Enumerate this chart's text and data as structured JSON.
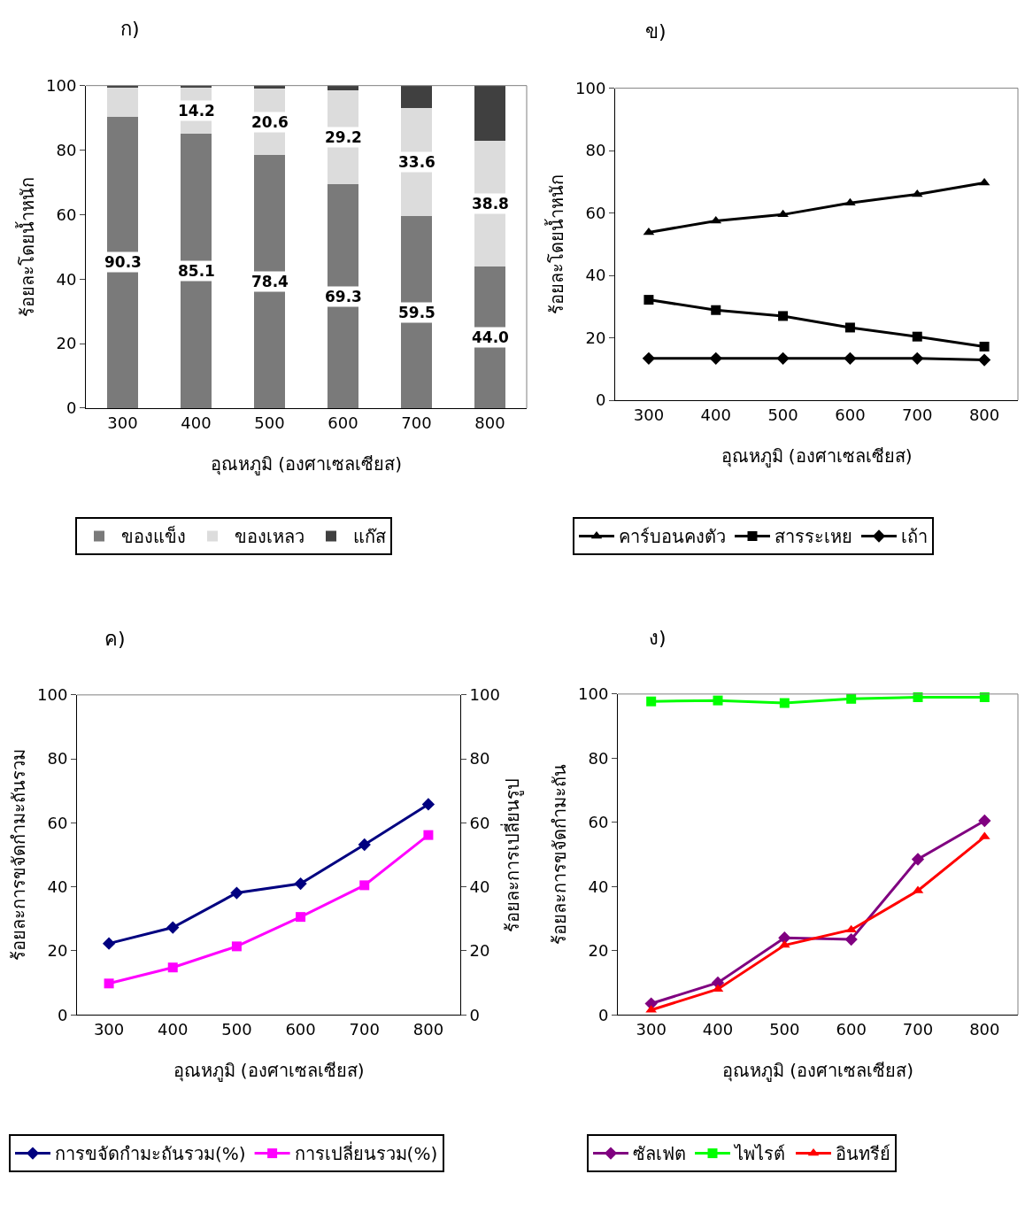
{
  "chart_data": [
    {
      "type": "bar",
      "title": "ก)",
      "xlabel": "อุณหภูมิ (องศาเซลเซียส)",
      "ylabel": "ร้อยละโดยน้ำหนัก",
      "categories": [
        "300",
        "400",
        "500",
        "600",
        "700",
        "800"
      ],
      "stacked": true,
      "ylim": [
        0,
        100
      ],
      "yticks": [
        0,
        20,
        40,
        60,
        80,
        100
      ],
      "legend": "bottom",
      "series": [
        {
          "name": "ของแข็ง",
          "color": "#7a7a7a",
          "values": [
            90.3,
            85.1,
            78.4,
            69.3,
            59.5,
            44.0
          ],
          "value_labels": [
            "90.3",
            "85.1",
            "78.4",
            "69.3",
            "59.5",
            "44.0"
          ]
        },
        {
          "name": "ของเหลว",
          "color": "#dcdcdc",
          "values": [
            9.0,
            14.2,
            20.6,
            29.2,
            33.6,
            38.8
          ],
          "value_labels": [
            null,
            "14.2",
            "20.6",
            "29.2",
            "33.6",
            "38.8"
          ]
        },
        {
          "name": "แก๊ส",
          "color": "#404040",
          "values": [
            0.7,
            0.7,
            1.0,
            1.5,
            6.9,
            17.2
          ]
        }
      ]
    },
    {
      "type": "line",
      "title": "ข)",
      "xlabel": "อุณหภูมิ (องศาเซลเซียส)",
      "ylabel": "ร้อยละโดยน้ำหนัก",
      "categories": [
        "300",
        "400",
        "500",
        "600",
        "700",
        "800"
      ],
      "ylim": [
        0,
        100
      ],
      "yticks": [
        0,
        20,
        40,
        60,
        80,
        100
      ],
      "legend": "bottom",
      "line_style": "solid",
      "series": [
        {
          "name": "คาร์บอนคงตัว",
          "color": "#000000",
          "marker": "triangle",
          "values": [
            53.8,
            57.5,
            59.5,
            63.2,
            66.0,
            69.7
          ]
        },
        {
          "name": "สารระเหย",
          "color": "#000000",
          "marker": "square",
          "values": [
            32.2,
            28.9,
            27.0,
            23.3,
            20.4,
            17.2
          ]
        },
        {
          "name": "เถ้า",
          "color": "#000000",
          "marker": "diamond",
          "values": [
            13.4,
            13.4,
            13.4,
            13.4,
            13.4,
            12.9
          ]
        }
      ]
    },
    {
      "type": "line",
      "title": "ค)",
      "xlabel": "อุณหภูมิ (องศาเซลเซียส)",
      "ylabel": "ร้อยละการขจัดกำมะถันรวม",
      "y2label": "ร้อยละการเปลี่ยนรูป",
      "categories": [
        "300",
        "400",
        "500",
        "600",
        "700",
        "800"
      ],
      "ylim": [
        0,
        100
      ],
      "yticks": [
        0,
        20,
        40,
        60,
        80,
        100
      ],
      "y2lim": [
        0,
        100
      ],
      "y2ticks": [
        0,
        20,
        40,
        60,
        80,
        100
      ],
      "legend": "bottom",
      "line_style": "solid",
      "series": [
        {
          "name": "การขจัดกำมะถันรวม(%)",
          "color": "#000080",
          "marker": "diamond",
          "values": [
            22.3,
            27.3,
            38.1,
            41.0,
            53.2,
            65.8
          ]
        },
        {
          "name": "การเปลี่ยนรวม(%)",
          "color": "#ff00ff",
          "marker": "square",
          "axis": "y2",
          "values": [
            9.8,
            14.8,
            21.4,
            30.6,
            40.5,
            56.2
          ]
        }
      ]
    },
    {
      "type": "line",
      "title": "ง)",
      "xlabel": "อุณหภูมิ (องศาเซลเซียส)",
      "ylabel": "ร้อยละการขจัดกำมะถัน",
      "categories": [
        "300",
        "400",
        "500",
        "600",
        "700",
        "800"
      ],
      "ylim": [
        0,
        100
      ],
      "yticks": [
        0,
        20,
        40,
        60,
        80,
        100
      ],
      "legend": "bottom",
      "line_style": "solid",
      "series": [
        {
          "name": "ซัลเฟต",
          "color": "#800080",
          "marker": "diamond",
          "values": [
            3.5,
            10.0,
            24.0,
            23.5,
            48.5,
            60.5
          ]
        },
        {
          "name": "ไพไรต์",
          "color": "#00ff00",
          "marker": "square",
          "values": [
            97.7,
            98.0,
            97.2,
            98.5,
            99.0,
            99.0
          ]
        },
        {
          "name": "อินทรีย์",
          "color": "#ff0000",
          "marker": "triangle",
          "values": [
            1.5,
            8.0,
            21.7,
            26.5,
            38.7,
            55.5
          ]
        }
      ]
    }
  ]
}
